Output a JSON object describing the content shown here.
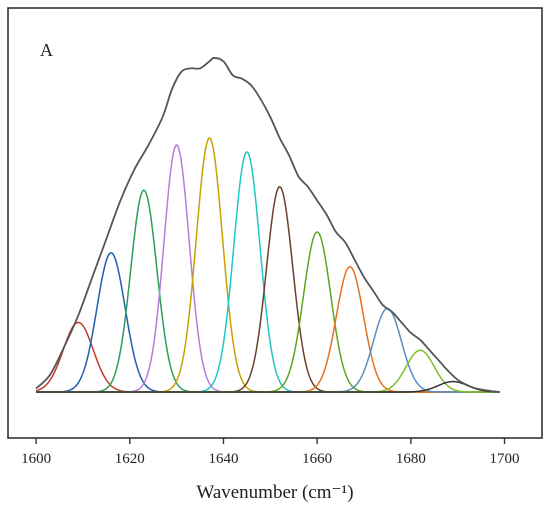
{
  "chart_data": {
    "type": "line",
    "panel_label": "A",
    "xlabel": "Wavenumber (cm⁻¹)",
    "ylabel": "",
    "xlim": [
      1594,
      1708
    ],
    "x_ticks": [
      "1600",
      "1620",
      "1640",
      "1660",
      "1680",
      "1700"
    ],
    "y_ticks_visible": false,
    "grid": false,
    "legend": "none",
    "x_range": [
      1600,
      1699
    ],
    "envelope": {
      "color": "#555555",
      "points": [
        [
          1600,
          0.01
        ],
        [
          1603,
          0.05
        ],
        [
          1606,
          0.13
        ],
        [
          1609,
          0.22
        ],
        [
          1612,
          0.33
        ],
        [
          1615,
          0.44
        ],
        [
          1618,
          0.55
        ],
        [
          1621,
          0.64
        ],
        [
          1624,
          0.71
        ],
        [
          1627,
          0.79
        ],
        [
          1629,
          0.87
        ],
        [
          1631,
          0.92
        ],
        [
          1633,
          0.93
        ],
        [
          1635,
          0.93
        ],
        [
          1637,
          0.95
        ],
        [
          1638,
          0.96
        ],
        [
          1640,
          0.95
        ],
        [
          1642,
          0.91
        ],
        [
          1644,
          0.9
        ],
        [
          1646,
          0.88
        ],
        [
          1648,
          0.84
        ],
        [
          1650,
          0.79
        ],
        [
          1652,
          0.73
        ],
        [
          1654,
          0.68
        ],
        [
          1656,
          0.62
        ],
        [
          1658,
          0.59
        ],
        [
          1660,
          0.55
        ],
        [
          1662,
          0.51
        ],
        [
          1664,
          0.46
        ],
        [
          1666,
          0.43
        ],
        [
          1668,
          0.38
        ],
        [
          1670,
          0.33
        ],
        [
          1672,
          0.29
        ],
        [
          1674,
          0.25
        ],
        [
          1676,
          0.23
        ],
        [
          1678,
          0.2
        ],
        [
          1680,
          0.17
        ],
        [
          1682,
          0.15
        ],
        [
          1684,
          0.12
        ],
        [
          1686,
          0.09
        ],
        [
          1688,
          0.06
        ],
        [
          1690,
          0.035
        ],
        [
          1692,
          0.02
        ],
        [
          1694,
          0.01
        ],
        [
          1697,
          0.003
        ],
        [
          1699,
          0.0
        ]
      ]
    },
    "components": [
      {
        "center": 1609,
        "height": 0.2,
        "sigma": 3.2,
        "color": "#c0392b"
      },
      {
        "center": 1616,
        "height": 0.4,
        "sigma": 3.0,
        "color": "#1f5fae"
      },
      {
        "center": 1623,
        "height": 0.58,
        "sigma": 2.8,
        "color": "#2e9e5b"
      },
      {
        "center": 1630,
        "height": 0.71,
        "sigma": 2.7,
        "color": "#b57edc"
      },
      {
        "center": 1637,
        "height": 0.73,
        "sigma": 2.8,
        "color": "#c9a200"
      },
      {
        "center": 1645,
        "height": 0.69,
        "sigma": 2.8,
        "color": "#1fc7c7"
      },
      {
        "center": 1652,
        "height": 0.59,
        "sigma": 2.8,
        "color": "#6b3f2f"
      },
      {
        "center": 1660,
        "height": 0.46,
        "sigma": 2.9,
        "color": "#5ea620"
      },
      {
        "center": 1667,
        "height": 0.36,
        "sigma": 2.9,
        "color": "#e8701a"
      },
      {
        "center": 1675,
        "height": 0.24,
        "sigma": 3.0,
        "color": "#5b8fc7"
      },
      {
        "center": 1682,
        "height": 0.12,
        "sigma": 3.0,
        "color": "#7fbf2a"
      },
      {
        "center": 1689,
        "height": 0.03,
        "sigma": 3.2,
        "color": "#333333"
      }
    ]
  }
}
